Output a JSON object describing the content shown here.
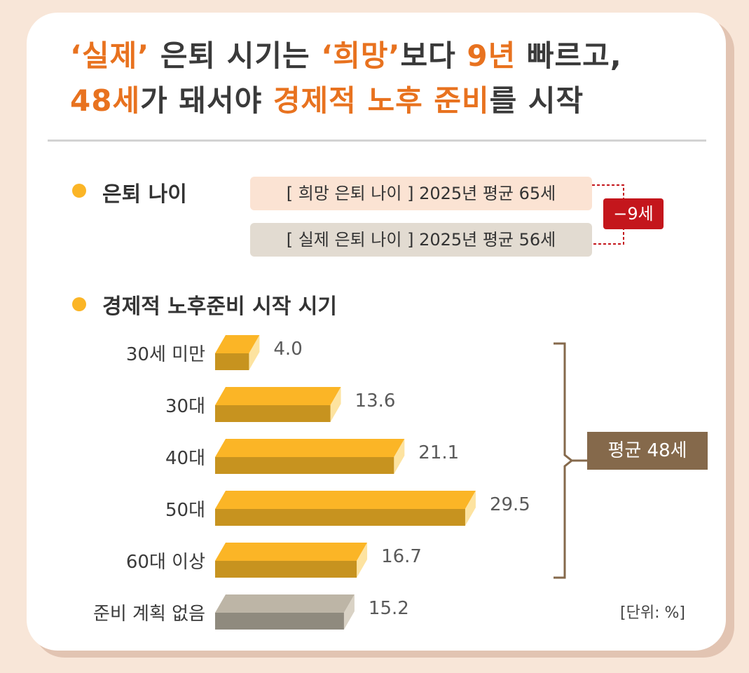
{
  "title": {
    "line1": [
      {
        "text": "‘실제’",
        "hl": true
      },
      {
        "text": " 은퇴 시기는 ",
        "hl": false
      },
      {
        "text": "‘희망’",
        "hl": true
      },
      {
        "text": "보다 ",
        "hl": false
      },
      {
        "text": "9년",
        "hl": true
      },
      {
        "text": " 빠르고,",
        "hl": false
      }
    ],
    "line2": [
      {
        "text": "48세",
        "hl": true
      },
      {
        "text": "가 돼서야 ",
        "hl": false
      },
      {
        "text": "경제적 노후 준비",
        "hl": true
      },
      {
        "text": "를 시작",
        "hl": false
      }
    ]
  },
  "retirement": {
    "label": "은퇴 나이",
    "hope_text": "[ 희망 은퇴 나이 ] 2025년 평균 65세",
    "real_text": "[ 실제 은퇴 나이 ] 2025년 평균 56세",
    "diff_text": "−9세"
  },
  "colors": {
    "accent": "#e8721f",
    "bar_top": "#fbb526",
    "bar_side": "#c7931f",
    "gray_top": "#bdb5a6",
    "gray_side": "#8f8a7e",
    "diff": "#c4161c",
    "avg": "#85694b"
  },
  "chart_data": {
    "type": "bar",
    "orientation": "horizontal",
    "title": "경제적 노후준비 시작 시기",
    "categories": [
      "30세 미만",
      "30대",
      "40대",
      "50대",
      "60대 이상",
      "준비 계획 없음"
    ],
    "values": [
      4.0,
      13.6,
      21.1,
      29.5,
      16.7,
      15.2
    ],
    "value_labels": [
      "4.0",
      "13.6",
      "21.1",
      "29.5",
      "16.7",
      "15.2"
    ],
    "highlight_gray": [
      false,
      false,
      false,
      false,
      false,
      true
    ],
    "unit_text": "[단위: %]",
    "bracket_label": "평균 48세"
  }
}
